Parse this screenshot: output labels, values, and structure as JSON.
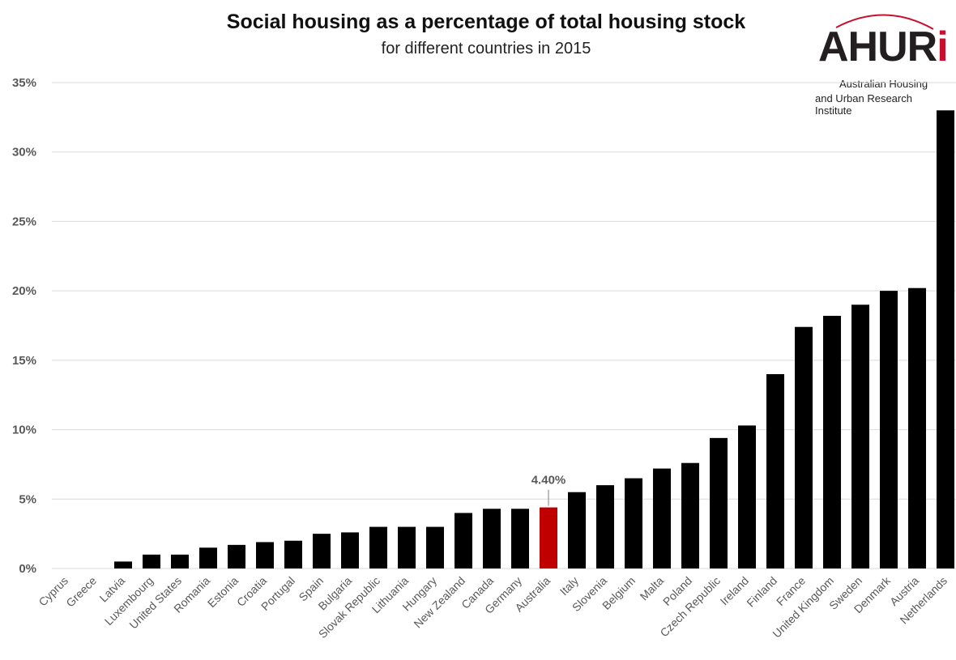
{
  "logo": {
    "word": "AHUR",
    "word_i": "i",
    "line1": "Australian Housing",
    "line2": "and Urban Research Institute"
  },
  "chart_data": {
    "type": "bar",
    "title": "Social housing as a percentage of total housing stock",
    "subtitle": "for different countries in 2015",
    "xlabel": "",
    "ylabel": "",
    "ylim": [
      0,
      35
    ],
    "yticks": [
      "0%",
      "5%",
      "10%",
      "15%",
      "20%",
      "25%",
      "30%",
      "35%"
    ],
    "grid": true,
    "categories": [
      "Cyprus",
      "Greece",
      "Latvia",
      "Luxembourg",
      "United States",
      "Romania",
      "Estonia",
      "Croatia",
      "Portugal",
      "Spain",
      "Bulgaria",
      "Slovak Republic",
      "Lithuania",
      "Hungary",
      "New Zealand",
      "Canada",
      "Germany",
      "Australia",
      "Italy",
      "Slovenia",
      "Belgium",
      "Malta",
      "Poland",
      "Czech Republic",
      "Ireland",
      "Finland",
      "France",
      "United Kingdom",
      "Sweden",
      "Denmark",
      "Austria",
      "Netherlands"
    ],
    "values": [
      0,
      0,
      0.5,
      1.0,
      1.0,
      1.5,
      1.7,
      1.9,
      2.0,
      2.5,
      2.6,
      3.0,
      3.0,
      3.0,
      4.0,
      4.3,
      4.3,
      4.4,
      5.5,
      6.0,
      6.5,
      7.2,
      7.6,
      9.4,
      10.3,
      14.0,
      17.4,
      18.2,
      19.0,
      20.0,
      20.2,
      33.0
    ],
    "highlight": {
      "category": "Australia",
      "label": "4.40%"
    },
    "colors": {
      "bar": "#000000",
      "highlight": "#c00000",
      "grid": "#d9d9d9",
      "tick_text": "#595959"
    }
  }
}
